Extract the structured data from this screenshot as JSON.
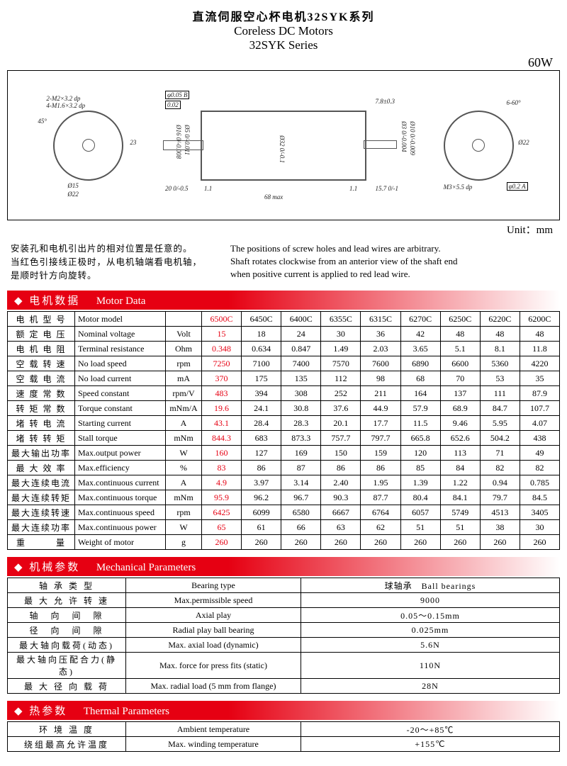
{
  "header": {
    "title_cn": "直流伺服空心杯电机32SYK系列",
    "title_en1": "Coreless DC Motors",
    "title_en2": "32SYK Series",
    "wattage": "60W",
    "unit": "Unit：mm"
  },
  "drawing_labels": {
    "d1": "2-M2×3.2 dp",
    "d2": "4-M1.6×3.2 dp",
    "d3": "Ø15",
    "d4": "Ø22",
    "d5": "45°",
    "d6": "23",
    "d7": "φ0.05 B",
    "d8": "0.02",
    "d9": "Ø16 0/-0.008",
    "d10": "Ø5 0/-0.011",
    "d11": "20 0/-0.5",
    "d12": "1.1",
    "d13": "68 max",
    "d14": "Ø32 0/-0.1",
    "d15": "7.8±0.3",
    "d16": "Ø3 0/-0.004",
    "d17": "Ø10 0/-0.009",
    "d18": "15.7 0/-1",
    "d19": "6-60°",
    "d20": "Ø22",
    "d21": "M3×5.5 dp",
    "d22": "φ0.2 A"
  },
  "notes": {
    "cn1": "安装孔和电机引出片的相对位置是任意的。",
    "cn2": "当红色引接线正极时，从电机轴端看电机轴，",
    "cn3": "是顺时针方向旋转。",
    "en1": "The positions of screw holes and lead wires are arbitrary.",
    "en2": "Shaft rotates clockwise from an anterior view of the shaft end",
    "en3": "when positive current is applied to red lead wire."
  },
  "sections": {
    "motor_data_cn": "电机数据",
    "motor_data_en": "Motor Data",
    "mech_cn": "机械参数",
    "mech_en": "Mechanical Parameters",
    "thermal_cn": "热参数",
    "thermal_en": "Thermal Parameters"
  },
  "motor_models": [
    "6500C",
    "6450C",
    "6400C",
    "6355C",
    "6315C",
    "6270C",
    "6250C",
    "6220C",
    "6200C"
  ],
  "motor_rows": [
    {
      "cn": "电 机 型 号",
      "en": "Motor model",
      "unit": "",
      "vals": [
        "6500C",
        "6450C",
        "6400C",
        "6355C",
        "6315C",
        "6270C",
        "6250C",
        "6220C",
        "6200C"
      ]
    },
    {
      "cn": "额 定 电 压",
      "en": "Nominal voltage",
      "unit": "Volt",
      "vals": [
        "15",
        "18",
        "24",
        "30",
        "36",
        "42",
        "48",
        "48",
        "48"
      ]
    },
    {
      "cn": "电 机 电 阻",
      "en": "Terminal resistance",
      "unit": "Ohm",
      "vals": [
        "0.348",
        "0.634",
        "0.847",
        "1.49",
        "2.03",
        "3.65",
        "5.1",
        "8.1",
        "11.8"
      ]
    },
    {
      "cn": "空 载 转 速",
      "en": "No load speed",
      "unit": "rpm",
      "vals": [
        "7250",
        "7100",
        "7400",
        "7570",
        "7600",
        "6890",
        "6600",
        "5360",
        "4220"
      ]
    },
    {
      "cn": "空 载 电 流",
      "en": "No load current",
      "unit": "mA",
      "vals": [
        "370",
        "175",
        "135",
        "112",
        "98",
        "68",
        "70",
        "53",
        "35"
      ]
    },
    {
      "cn": "速 度 常 数",
      "en": "Speed constant",
      "unit": "rpm/V",
      "vals": [
        "483",
        "394",
        "308",
        "252",
        "211",
        "164",
        "137",
        "111",
        "87.9"
      ]
    },
    {
      "cn": "转 矩 常 数",
      "en": "Torque constant",
      "unit": "mNm/A",
      "vals": [
        "19.6",
        "24.1",
        "30.8",
        "37.6",
        "44.9",
        "57.9",
        "68.9",
        "84.7",
        "107.7"
      ]
    },
    {
      "cn": "堵 转 电 流",
      "en": "Starting current",
      "unit": "A",
      "vals": [
        "43.1",
        "28.4",
        "28.3",
        "20.1",
        "17.7",
        "11.5",
        "9.46",
        "5.95",
        "4.07"
      ]
    },
    {
      "cn": "堵 转 转 矩",
      "en": "Stall torque",
      "unit": "mNm",
      "vals": [
        "844.3",
        "683",
        "873.3",
        "757.7",
        "797.7",
        "665.8",
        "652.6",
        "504.2",
        "438"
      ]
    },
    {
      "cn": "最大输出功率",
      "en": "Max.output power",
      "unit": "W",
      "vals": [
        "160",
        "127",
        "169",
        "150",
        "159",
        "120",
        "113",
        "71",
        "49"
      ]
    },
    {
      "cn": "最 大 效 率",
      "en": "Max.efficiency",
      "unit": "%",
      "vals": [
        "83",
        "86",
        "87",
        "86",
        "86",
        "85",
        "84",
        "82",
        "82"
      ]
    },
    {
      "cn": "最大连续电流",
      "en": "Max.continuous current",
      "unit": "A",
      "vals": [
        "4.9",
        "3.97",
        "3.14",
        "2.40",
        "1.95",
        "1.39",
        "1.22",
        "0.94",
        "0.785"
      ]
    },
    {
      "cn": "最大连续转矩",
      "en": "Max.continuous torque",
      "unit": "mNm",
      "vals": [
        "95.9",
        "96.2",
        "96.7",
        "90.3",
        "87.7",
        "80.4",
        "84.1",
        "79.7",
        "84.5"
      ]
    },
    {
      "cn": "最大连续转速",
      "en": "Max.continuous speed",
      "unit": "rpm",
      "vals": [
        "6425",
        "6099",
        "6580",
        "6667",
        "6764",
        "6057",
        "5749",
        "4513",
        "3405"
      ]
    },
    {
      "cn": "最大连续功率",
      "en": "Max.continuous power",
      "unit": "W",
      "vals": [
        "65",
        "61",
        "66",
        "63",
        "62",
        "51",
        "51",
        "38",
        "30"
      ]
    },
    {
      "cn": "重　　　量",
      "en": "Weight of motor",
      "unit": "g",
      "vals": [
        "260",
        "260",
        "260",
        "260",
        "260",
        "260",
        "260",
        "260",
        "260"
      ]
    }
  ],
  "mech_rows": [
    {
      "cn": "轴 承 类 型",
      "en": "Bearing type",
      "val": "球轴承　Ball bearings"
    },
    {
      "cn": "最 大 允 许 转 速",
      "en": "Max.permissible speed",
      "val": "9000"
    },
    {
      "cn": "轴　向　间　隙",
      "en": "Axial play",
      "val": "0.05～0.15mm"
    },
    {
      "cn": "径　向　间　隙",
      "en": "Radial play ball bearing",
      "val": "0.025mm"
    },
    {
      "cn": "最大轴向载荷(动态)",
      "en": "Max. axial load (dynamic)",
      "val": "5.6N"
    },
    {
      "cn": "最大轴向压配合力(静态)",
      "en": "Max. force for press fits (static)",
      "val": "110N"
    },
    {
      "cn": "最 大 径 向 载 荷",
      "en": "Max. radial load (5 mm from flange)",
      "val": "28N"
    }
  ],
  "thermal_rows": [
    {
      "cn": "环 境 温 度",
      "en": "Ambient temperature",
      "val": "-20～+85℃"
    },
    {
      "cn": "绕组最高允许温度",
      "en": "Max. winding temperature",
      "val": "+155℃"
    }
  ]
}
